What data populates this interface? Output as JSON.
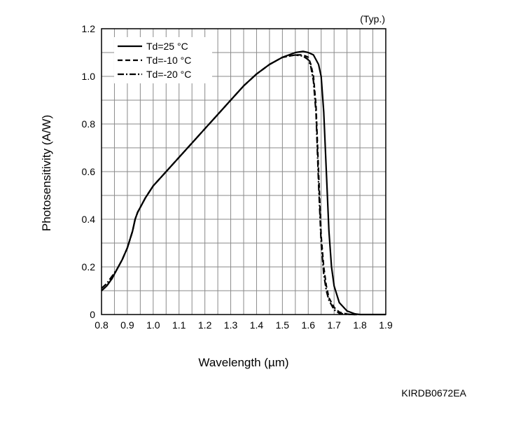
{
  "chart_data": {
    "type": "line",
    "title": "",
    "note": "(Typ.)",
    "xlabel": "Wavelength (µm)",
    "ylabel": "Photosensitivity (A/W)",
    "xlim": [
      0.8,
      1.9
    ],
    "ylim": [
      0,
      1.2
    ],
    "x_ticks": [
      0.8,
      0.9,
      1.0,
      1.1,
      1.2,
      1.3,
      1.4,
      1.5,
      1.6,
      1.7,
      1.8,
      1.9
    ],
    "x_tick_labels": [
      "0.8",
      "0.9",
      "1.0",
      "1.1",
      "1.2",
      "1.3",
      "1.4",
      "1.5",
      "1.6",
      "1.7",
      "1.8",
      "1.9"
    ],
    "y_ticks": [
      0,
      0.2,
      0.4,
      0.6,
      0.8,
      1.0,
      1.2
    ],
    "y_tick_labels": [
      "0",
      "0.2",
      "0.4",
      "0.6",
      "0.8",
      "1.0",
      "1.2"
    ],
    "grid": true,
    "legend_position": "top-left",
    "series": [
      {
        "name": "Td=25 °C",
        "line_style": "solid",
        "color": "#000000",
        "x": [
          0.8,
          0.82,
          0.84,
          0.86,
          0.88,
          0.9,
          0.92,
          0.93,
          0.94,
          0.95,
          0.97,
          1.0,
          1.05,
          1.1,
          1.15,
          1.2,
          1.25,
          1.3,
          1.35,
          1.4,
          1.45,
          1.5,
          1.55,
          1.58,
          1.6,
          1.62,
          1.64,
          1.65,
          1.66,
          1.67,
          1.68,
          1.69,
          1.7,
          1.72,
          1.75,
          1.78,
          1.8,
          1.9
        ],
        "y": [
          0.1,
          0.12,
          0.15,
          0.19,
          0.23,
          0.28,
          0.35,
          0.4,
          0.43,
          0.45,
          0.49,
          0.54,
          0.6,
          0.66,
          0.72,
          0.78,
          0.84,
          0.9,
          0.96,
          1.01,
          1.05,
          1.08,
          1.1,
          1.105,
          1.1,
          1.09,
          1.05,
          1.0,
          0.85,
          0.6,
          0.35,
          0.2,
          0.12,
          0.05,
          0.015,
          0.003,
          0.0,
          0.0
        ]
      },
      {
        "name": "Td=-10 °C",
        "line_style": "dashed",
        "color": "#000000",
        "x": [
          0.8,
          0.82,
          0.84,
          0.86,
          0.88,
          0.9,
          0.92,
          0.93,
          0.94,
          0.95,
          0.97,
          1.0,
          1.05,
          1.1,
          1.15,
          1.2,
          1.25,
          1.3,
          1.35,
          1.4,
          1.45,
          1.5,
          1.55,
          1.58,
          1.6,
          1.61,
          1.62,
          1.63,
          1.64,
          1.65,
          1.66,
          1.67,
          1.68,
          1.7,
          1.72,
          1.75,
          1.78,
          1.8
        ],
        "y": [
          0.1,
          0.12,
          0.15,
          0.19,
          0.23,
          0.28,
          0.35,
          0.4,
          0.43,
          0.45,
          0.49,
          0.54,
          0.6,
          0.66,
          0.72,
          0.78,
          0.84,
          0.9,
          0.96,
          1.01,
          1.05,
          1.08,
          1.09,
          1.09,
          1.08,
          1.05,
          1.0,
          0.88,
          0.6,
          0.33,
          0.2,
          0.12,
          0.07,
          0.03,
          0.01,
          0.002,
          0.0,
          0.0
        ]
      },
      {
        "name": "Td=-20 °C",
        "line_style": "dash-dot",
        "color": "#000000",
        "x": [
          0.8,
          0.82,
          0.84,
          0.86,
          0.88,
          0.9,
          0.92,
          0.93,
          0.94,
          0.95,
          0.97,
          1.0,
          1.05,
          1.1,
          1.15,
          1.2,
          1.25,
          1.3,
          1.35,
          1.4,
          1.45,
          1.5,
          1.55,
          1.58,
          1.6,
          1.61,
          1.62,
          1.63,
          1.64,
          1.65,
          1.66,
          1.67,
          1.68,
          1.7,
          1.72,
          1.75,
          1.78
        ],
        "y": [
          0.11,
          0.13,
          0.16,
          0.19,
          0.23,
          0.28,
          0.35,
          0.4,
          0.43,
          0.45,
          0.49,
          0.54,
          0.6,
          0.66,
          0.72,
          0.78,
          0.84,
          0.9,
          0.96,
          1.01,
          1.05,
          1.08,
          1.09,
          1.085,
          1.07,
          1.04,
          0.98,
          0.85,
          0.55,
          0.3,
          0.17,
          0.1,
          0.06,
          0.02,
          0.005,
          0.001,
          0.0
        ]
      }
    ]
  },
  "figure_code": "KIRDB0672EA"
}
